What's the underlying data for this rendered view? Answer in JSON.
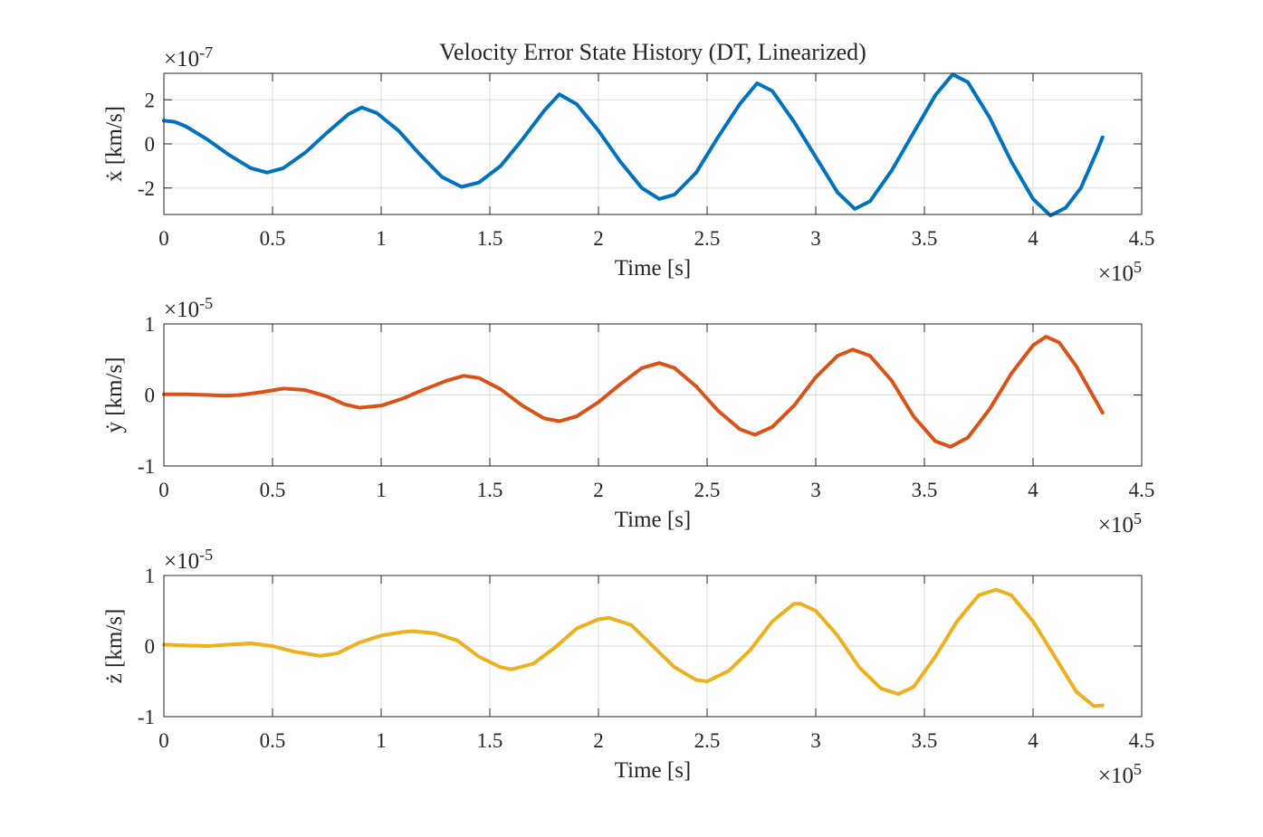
{
  "chart_data": [
    {
      "type": "line",
      "title": "Velocity Error State History (DT, Linearized)",
      "xlabel": "Time [s]",
      "ylabel": "ẋ [km/s]",
      "x_exponent_label": "×10^5",
      "y_exponent_label": "×10^-7",
      "xlim": [
        0,
        4.5
      ],
      "ylim": [
        -3.2,
        3.2
      ],
      "x_ticks": [
        0,
        0.5,
        1,
        1.5,
        2,
        2.5,
        3,
        3.5,
        4,
        4.5
      ],
      "x_tick_labels": [
        "0",
        "0.5",
        "1",
        "1.5",
        "2",
        "2.5",
        "3",
        "3.5",
        "4",
        "4.5"
      ],
      "y_ticks": [
        -2,
        0,
        2
      ],
      "y_tick_labels": [
        "-2",
        "0",
        "2"
      ],
      "grid": true,
      "color": "#0072bd",
      "series": [
        {
          "x": [
            0,
            0.05,
            0.1,
            0.2,
            0.3,
            0.4,
            0.475,
            0.55,
            0.65,
            0.75,
            0.85,
            0.91,
            0.98,
            1.08,
            1.18,
            1.28,
            1.37,
            1.45,
            1.55,
            1.65,
            1.75,
            1.82,
            1.9,
            2.0,
            2.1,
            2.2,
            2.28,
            2.35,
            2.45,
            2.55,
            2.65,
            2.73,
            2.8,
            2.9,
            3.0,
            3.1,
            3.18,
            3.25,
            3.35,
            3.45,
            3.55,
            3.63,
            3.7,
            3.8,
            3.9,
            4.0,
            4.08,
            4.15,
            4.22,
            4.3,
            4.32
          ],
          "values": [
            1.05,
            1.0,
            0.8,
            0.2,
            -0.5,
            -1.1,
            -1.3,
            -1.1,
            -0.4,
            0.5,
            1.35,
            1.65,
            1.4,
            0.6,
            -0.5,
            -1.5,
            -1.95,
            -1.75,
            -1.0,
            0.2,
            1.5,
            2.25,
            1.8,
            0.6,
            -0.8,
            -2.0,
            -2.5,
            -2.3,
            -1.3,
            0.3,
            1.8,
            2.75,
            2.4,
            1.0,
            -0.6,
            -2.2,
            -2.95,
            -2.6,
            -1.2,
            0.5,
            2.2,
            3.15,
            2.8,
            1.2,
            -0.8,
            -2.5,
            -3.25,
            -2.9,
            -2.0,
            -0.2,
            0.3
          ]
        }
      ]
    },
    {
      "type": "line",
      "xlabel": "Time [s]",
      "ylabel": "ẏ [km/s]",
      "x_exponent_label": "×10^5",
      "y_exponent_label": "×10^-5",
      "xlim": [
        0,
        4.5
      ],
      "ylim": [
        -1,
        1
      ],
      "x_ticks": [
        0,
        0.5,
        1,
        1.5,
        2,
        2.5,
        3,
        3.5,
        4,
        4.5
      ],
      "x_tick_labels": [
        "0",
        "0.5",
        "1",
        "1.5",
        "2",
        "2.5",
        "3",
        "3.5",
        "4",
        "4.5"
      ],
      "y_ticks": [
        -1,
        0,
        1
      ],
      "y_tick_labels": [
        "-1",
        "0",
        "1"
      ],
      "grid": true,
      "color": "#d95319",
      "series": [
        {
          "x": [
            0,
            0.1,
            0.2,
            0.28,
            0.35,
            0.45,
            0.55,
            0.65,
            0.75,
            0.83,
            0.9,
            1.0,
            1.1,
            1.2,
            1.3,
            1.38,
            1.45,
            1.55,
            1.65,
            1.75,
            1.82,
            1.9,
            2.0,
            2.1,
            2.2,
            2.28,
            2.35,
            2.45,
            2.55,
            2.65,
            2.72,
            2.8,
            2.9,
            3.0,
            3.1,
            3.17,
            3.25,
            3.35,
            3.45,
            3.55,
            3.62,
            3.7,
            3.8,
            3.9,
            4.0,
            4.06,
            4.12,
            4.2,
            4.32
          ],
          "values": [
            0.01,
            0.01,
            0.0,
            -0.01,
            0.0,
            0.04,
            0.09,
            0.07,
            -0.02,
            -0.13,
            -0.18,
            -0.15,
            -0.05,
            0.08,
            0.2,
            0.27,
            0.24,
            0.08,
            -0.15,
            -0.33,
            -0.37,
            -0.3,
            -0.1,
            0.15,
            0.38,
            0.45,
            0.38,
            0.12,
            -0.22,
            -0.48,
            -0.56,
            -0.45,
            -0.15,
            0.25,
            0.55,
            0.64,
            0.55,
            0.2,
            -0.3,
            -0.65,
            -0.73,
            -0.6,
            -0.2,
            0.3,
            0.7,
            0.82,
            0.74,
            0.4,
            -0.25
          ]
        }
      ]
    },
    {
      "type": "line",
      "xlabel": "Time [s]",
      "ylabel": "ż [km/s]",
      "x_exponent_label": "×10^5",
      "y_exponent_label": "×10^-5",
      "xlim": [
        0,
        4.5
      ],
      "ylim": [
        -1,
        1
      ],
      "x_ticks": [
        0,
        0.5,
        1,
        1.5,
        2,
        2.5,
        3,
        3.5,
        4,
        4.5
      ],
      "x_tick_labels": [
        "0",
        "0.5",
        "1",
        "1.5",
        "2",
        "2.5",
        "3",
        "3.5",
        "4",
        "4.5"
      ],
      "y_ticks": [
        -1,
        0,
        1
      ],
      "y_tick_labels": [
        "-1",
        "0",
        "1"
      ],
      "grid": true,
      "color": "#edb120",
      "series": [
        {
          "x": [
            0,
            0.1,
            0.2,
            0.3,
            0.4,
            0.5,
            0.6,
            0.72,
            0.8,
            0.9,
            1.0,
            1.1,
            1.15,
            1.25,
            1.35,
            1.45,
            1.55,
            1.6,
            1.7,
            1.8,
            1.9,
            2.0,
            2.05,
            2.15,
            2.25,
            2.35,
            2.45,
            2.5,
            2.6,
            2.7,
            2.8,
            2.9,
            2.93,
            3.0,
            3.1,
            3.2,
            3.3,
            3.38,
            3.45,
            3.55,
            3.65,
            3.75,
            3.83,
            3.9,
            4.0,
            4.1,
            4.2,
            4.28,
            4.32
          ],
          "values": [
            0.02,
            0.01,
            0.0,
            0.02,
            0.04,
            0.0,
            -0.08,
            -0.14,
            -0.1,
            0.05,
            0.15,
            0.2,
            0.21,
            0.18,
            0.08,
            -0.15,
            -0.3,
            -0.33,
            -0.25,
            -0.02,
            0.25,
            0.38,
            0.4,
            0.3,
            0.0,
            -0.3,
            -0.48,
            -0.5,
            -0.35,
            -0.05,
            0.35,
            0.6,
            0.6,
            0.5,
            0.15,
            -0.3,
            -0.6,
            -0.68,
            -0.58,
            -0.15,
            0.35,
            0.72,
            0.8,
            0.72,
            0.35,
            -0.15,
            -0.65,
            -0.85,
            -0.84
          ]
        }
      ]
    }
  ]
}
